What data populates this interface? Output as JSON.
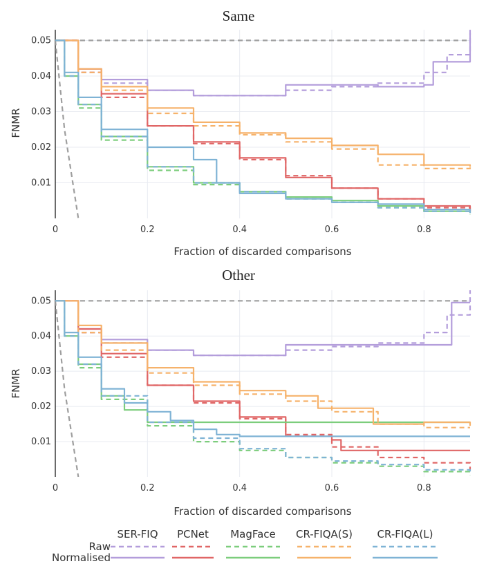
{
  "colors": {
    "SER-FIQ": "#b39ddb",
    "PCNet": "#e06666",
    "MagFace": "#7ccd7c",
    "CR-FIQA(S)": "#f6b26b",
    "CR-FIQA(L)": "#7fb3d5",
    "baseline": "#9e9e9e",
    "grid": "#e8ebf1"
  },
  "legend": {
    "methods": [
      "SER-FIQ",
      "PCNet",
      "MagFace",
      "CR-FIQA(S)",
      "CR-FIQA(L)"
    ],
    "row_labels": [
      "Raw",
      "Normalised"
    ],
    "placement": "bottom"
  },
  "chart_data": [
    {
      "type": "line",
      "title": "Same",
      "xlabel": "Fraction of discarded comparisons",
      "ylabel": "FNMR",
      "xlim": [
        0,
        0.9
      ],
      "ylim": [
        0,
        0.053
      ],
      "xticks": [
        "0",
        "0.2",
        "0.4",
        "0.6",
        "0.8"
      ],
      "yticks": [
        "0.01",
        "0.02",
        "0.03",
        "0.04",
        "0.05"
      ],
      "grid": true,
      "series": [
        {
          "name": "Baseline",
          "style": "dashed",
          "x": [
            0,
            0.9
          ],
          "y": [
            0.05,
            0.05
          ]
        },
        {
          "name": "Oracle",
          "style": "dashed",
          "x": [
            0,
            0.02,
            0.05
          ],
          "y": [
            0.05,
            0.025,
            0.0
          ]
        },
        {
          "name": "SER-FIQ",
          "style": "dashed",
          "x": [
            0,
            0.05,
            0.1,
            0.2,
            0.3,
            0.4,
            0.5,
            0.6,
            0.7,
            0.8,
            0.85,
            0.9
          ],
          "y": [
            0.05,
            0.041,
            0.038,
            0.036,
            0.0345,
            0.0345,
            0.036,
            0.037,
            0.038,
            0.041,
            0.046,
            0.053
          ]
        },
        {
          "name": "SER-FIQ",
          "style": "solid",
          "x": [
            0,
            0.05,
            0.1,
            0.2,
            0.3,
            0.4,
            0.5,
            0.6,
            0.7,
            0.8,
            0.82,
            0.9
          ],
          "y": [
            0.05,
            0.042,
            0.039,
            0.036,
            0.0345,
            0.0345,
            0.0375,
            0.0375,
            0.037,
            0.0375,
            0.044,
            0.052
          ]
        },
        {
          "name": "PCNet",
          "style": "dashed",
          "x": [
            0,
            0.05,
            0.1,
            0.2,
            0.3,
            0.4,
            0.5,
            0.6,
            0.7,
            0.8,
            0.9
          ],
          "y": [
            0.05,
            0.041,
            0.034,
            0.026,
            0.021,
            0.0165,
            0.012,
            0.0085,
            0.0055,
            0.003,
            0.002
          ]
        },
        {
          "name": "PCNet",
          "style": "solid",
          "x": [
            0,
            0.05,
            0.1,
            0.2,
            0.3,
            0.4,
            0.5,
            0.6,
            0.7,
            0.8,
            0.9
          ],
          "y": [
            0.05,
            0.042,
            0.035,
            0.026,
            0.0215,
            0.017,
            0.0115,
            0.0085,
            0.0055,
            0.0035,
            0.002
          ]
        },
        {
          "name": "MagFace",
          "style": "dashed",
          "x": [
            0,
            0.02,
            0.05,
            0.1,
            0.2,
            0.3,
            0.4,
            0.5,
            0.6,
            0.7,
            0.8,
            0.9
          ],
          "y": [
            0.05,
            0.04,
            0.031,
            0.022,
            0.0135,
            0.0095,
            0.0075,
            0.0055,
            0.0045,
            0.003,
            0.002,
            0.001
          ]
        },
        {
          "name": "MagFace",
          "style": "solid",
          "x": [
            0,
            0.02,
            0.05,
            0.1,
            0.2,
            0.3,
            0.4,
            0.5,
            0.6,
            0.7,
            0.8,
            0.9
          ],
          "y": [
            0.05,
            0.04,
            0.032,
            0.023,
            0.0145,
            0.01,
            0.0075,
            0.006,
            0.005,
            0.0035,
            0.002,
            0.0015
          ]
        },
        {
          "name": "CR-FIQA(S)",
          "style": "dashed",
          "x": [
            0,
            0.05,
            0.1,
            0.2,
            0.3,
            0.4,
            0.5,
            0.6,
            0.7,
            0.8,
            0.9
          ],
          "y": [
            0.05,
            0.041,
            0.036,
            0.0295,
            0.026,
            0.0235,
            0.0215,
            0.0195,
            0.015,
            0.014,
            0.0145
          ]
        },
        {
          "name": "CR-FIQA(S)",
          "style": "solid",
          "x": [
            0,
            0.05,
            0.1,
            0.2,
            0.3,
            0.4,
            0.5,
            0.6,
            0.7,
            0.8,
            0.9
          ],
          "y": [
            0.05,
            0.042,
            0.037,
            0.031,
            0.027,
            0.024,
            0.0225,
            0.0205,
            0.018,
            0.015,
            0.0145
          ]
        },
        {
          "name": "CR-FIQA(L)",
          "style": "dashed",
          "x": [
            0,
            0.02,
            0.05,
            0.1,
            0.2,
            0.3,
            0.4,
            0.5,
            0.6,
            0.7,
            0.8,
            0.9
          ],
          "y": [
            0.05,
            0.04,
            0.032,
            0.023,
            0.0145,
            0.01,
            0.0075,
            0.0055,
            0.0045,
            0.003,
            0.002,
            0.0015
          ]
        },
        {
          "name": "CR-FIQA(L)",
          "style": "solid",
          "x": [
            0,
            0.02,
            0.05,
            0.1,
            0.2,
            0.3,
            0.35,
            0.4,
            0.5,
            0.6,
            0.7,
            0.8,
            0.9
          ],
          "y": [
            0.05,
            0.041,
            0.034,
            0.025,
            0.02,
            0.0165,
            0.01,
            0.007,
            0.0055,
            0.0045,
            0.004,
            0.0025,
            0.0015
          ]
        }
      ]
    },
    {
      "type": "line",
      "title": "Other",
      "xlabel": "Fraction of discarded comparisons",
      "ylabel": "FNMR",
      "xlim": [
        0,
        0.9
      ],
      "ylim": [
        0,
        0.053
      ],
      "xticks": [
        "0",
        "0.2",
        "0.4",
        "0.6",
        "0.8"
      ],
      "yticks": [
        "0.01",
        "0.02",
        "0.03",
        "0.04",
        "0.05"
      ],
      "grid": true,
      "series": [
        {
          "name": "Baseline",
          "style": "dashed",
          "x": [
            0,
            0.9
          ],
          "y": [
            0.05,
            0.05
          ]
        },
        {
          "name": "Oracle",
          "style": "dashed",
          "x": [
            0,
            0.02,
            0.05
          ],
          "y": [
            0.05,
            0.025,
            0.0
          ]
        },
        {
          "name": "SER-FIQ",
          "style": "dashed",
          "x": [
            0,
            0.05,
            0.1,
            0.2,
            0.3,
            0.4,
            0.5,
            0.6,
            0.7,
            0.8,
            0.85,
            0.9
          ],
          "y": [
            0.05,
            0.041,
            0.038,
            0.036,
            0.0345,
            0.0345,
            0.036,
            0.037,
            0.038,
            0.041,
            0.046,
            0.053
          ]
        },
        {
          "name": "SER-FIQ",
          "style": "solid",
          "x": [
            0,
            0.05,
            0.1,
            0.2,
            0.3,
            0.4,
            0.5,
            0.6,
            0.7,
            0.8,
            0.86,
            0.9
          ],
          "y": [
            0.05,
            0.042,
            0.039,
            0.036,
            0.0345,
            0.0345,
            0.0375,
            0.0375,
            0.0375,
            0.0375,
            0.0495,
            0.0495
          ]
        },
        {
          "name": "PCNet",
          "style": "dashed",
          "x": [
            0,
            0.05,
            0.1,
            0.2,
            0.3,
            0.4,
            0.5,
            0.6,
            0.7,
            0.8,
            0.9
          ],
          "y": [
            0.05,
            0.041,
            0.034,
            0.026,
            0.021,
            0.0165,
            0.012,
            0.0085,
            0.0055,
            0.004,
            0.002
          ]
        },
        {
          "name": "PCNet",
          "style": "solid",
          "x": [
            0,
            0.05,
            0.1,
            0.2,
            0.3,
            0.4,
            0.5,
            0.6,
            0.62,
            0.7,
            0.8,
            0.9
          ],
          "y": [
            0.05,
            0.042,
            0.035,
            0.026,
            0.0215,
            0.017,
            0.0115,
            0.0105,
            0.0075,
            0.0075,
            0.0075,
            0.0075
          ]
        },
        {
          "name": "MagFace",
          "style": "dashed",
          "x": [
            0,
            0.02,
            0.05,
            0.1,
            0.2,
            0.3,
            0.4,
            0.5,
            0.6,
            0.7,
            0.8,
            0.9
          ],
          "y": [
            0.05,
            0.04,
            0.031,
            0.022,
            0.0145,
            0.01,
            0.0075,
            0.0055,
            0.004,
            0.003,
            0.0015,
            0.0005
          ]
        },
        {
          "name": "MagFace",
          "style": "solid",
          "x": [
            0,
            0.02,
            0.05,
            0.1,
            0.15,
            0.2,
            0.3,
            0.5,
            0.7,
            0.9
          ],
          "y": [
            0.05,
            0.04,
            0.032,
            0.023,
            0.019,
            0.0155,
            0.0155,
            0.0155,
            0.0155,
            0.0155
          ]
        },
        {
          "name": "CR-FIQA(S)",
          "style": "dashed",
          "x": [
            0,
            0.05,
            0.1,
            0.2,
            0.3,
            0.4,
            0.5,
            0.6,
            0.7,
            0.8,
            0.9
          ],
          "y": [
            0.05,
            0.041,
            0.036,
            0.0295,
            0.026,
            0.0235,
            0.0215,
            0.0185,
            0.015,
            0.014,
            0.014
          ]
        },
        {
          "name": "CR-FIQA(S)",
          "style": "solid",
          "x": [
            0,
            0.05,
            0.1,
            0.2,
            0.3,
            0.4,
            0.5,
            0.57,
            0.69,
            0.8,
            0.9
          ],
          "y": [
            0.05,
            0.043,
            0.038,
            0.031,
            0.027,
            0.0245,
            0.023,
            0.0195,
            0.015,
            0.0155,
            0.0145
          ]
        },
        {
          "name": "CR-FIQA(L)",
          "style": "dashed",
          "x": [
            0,
            0.02,
            0.05,
            0.1,
            0.2,
            0.3,
            0.4,
            0.5,
            0.6,
            0.7,
            0.8,
            0.9
          ],
          "y": [
            0.05,
            0.04,
            0.032,
            0.023,
            0.0155,
            0.011,
            0.008,
            0.0055,
            0.0045,
            0.0035,
            0.002,
            0.001
          ]
        },
        {
          "name": "CR-FIQA(L)",
          "style": "solid",
          "x": [
            0,
            0.02,
            0.05,
            0.1,
            0.15,
            0.2,
            0.25,
            0.3,
            0.35,
            0.4,
            0.5,
            0.7,
            0.9
          ],
          "y": [
            0.05,
            0.041,
            0.034,
            0.025,
            0.021,
            0.0185,
            0.016,
            0.0135,
            0.012,
            0.0115,
            0.0115,
            0.0115,
            0.0115
          ]
        }
      ]
    }
  ]
}
